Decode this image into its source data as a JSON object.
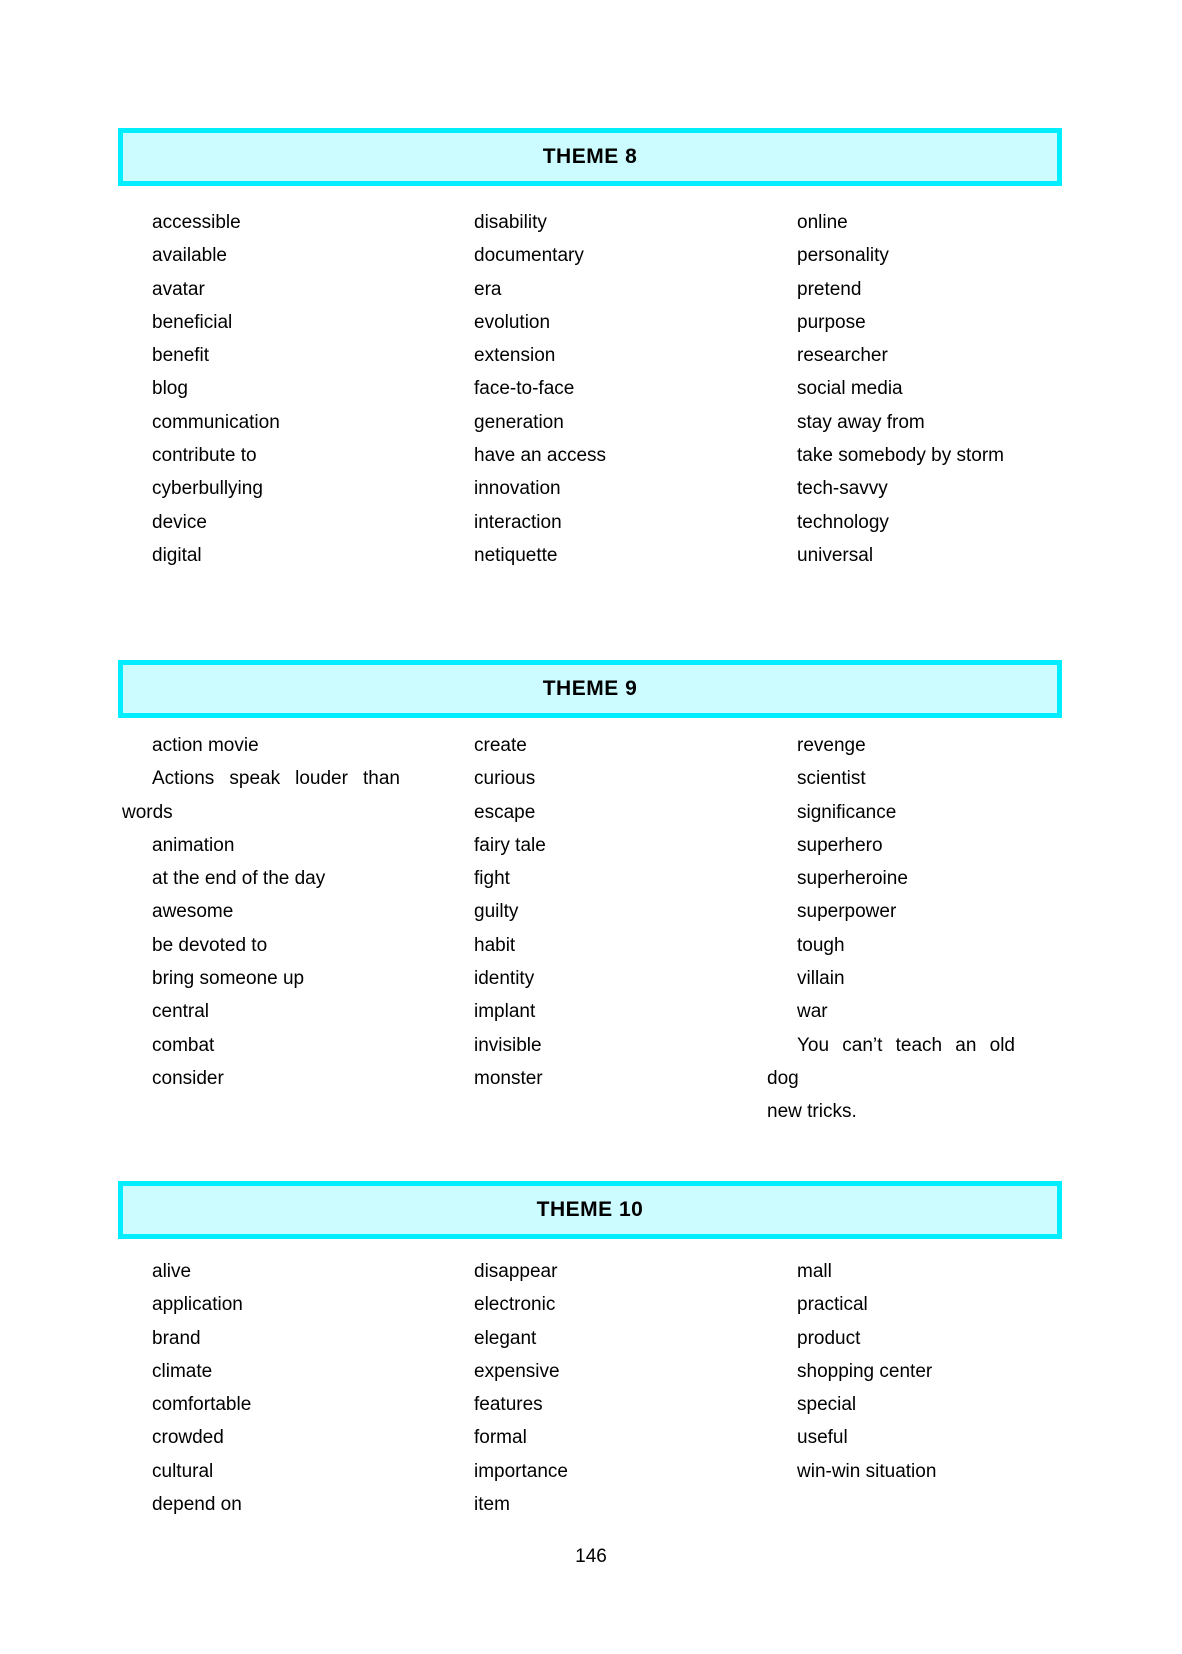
{
  "page": {
    "number": "146"
  },
  "colors": {
    "box_border": "#00eeff",
    "box_fill": "#ccfcff"
  },
  "themes": [
    {
      "title": "THEME 8",
      "columns": [
        [
          "accessible",
          "available",
          "avatar",
          "beneficial",
          "benefit",
          "blog",
          "communication",
          "contribute to",
          "cyberbullying",
          "device",
          "digital"
        ],
        [
          "disability",
          "documentary",
          "era",
          "evolution",
          "extension",
          "face-to-face",
          "generation",
          "have an access",
          "innovation",
          "interaction",
          "netiquette"
        ],
        [
          "online",
          "personality",
          "pretend",
          "purpose",
          "researcher",
          "social media",
          "stay away from",
          "take somebody by storm",
          "tech-savvy",
          "technology",
          "universal"
        ]
      ]
    },
    {
      "title": "THEME 9",
      "columns": [
        [
          "action movie",
          {
            "lines": [
              "Actions speak louder than",
              "words"
            ]
          },
          "animation",
          "at the end of the day",
          "awesome",
          "be devoted to",
          "bring someone up",
          "central",
          "combat",
          "consider"
        ],
        [
          "create",
          "curious",
          "escape",
          "fairy tale",
          "fight",
          "guilty",
          "habit",
          "identity",
          "implant",
          "invisible",
          "monster"
        ],
        [
          "revenge",
          "scientist",
          "significance",
          "superhero",
          "superheroine",
          "superpower",
          "tough",
          "villain",
          "war",
          {
            "lines": [
              "You can’t teach an old dog",
              "new tricks."
            ]
          }
        ]
      ]
    },
    {
      "title": "THEME 10",
      "columns": [
        [
          "alive",
          "application",
          "brand",
          "climate",
          "comfortable",
          "crowded",
          "cultural",
          "depend on"
        ],
        [
          "disappear",
          "electronic",
          "elegant",
          "expensive",
          "features",
          "formal",
          "importance",
          "item"
        ],
        [
          "mall",
          "practical",
          "product",
          "shopping center",
          "special",
          "useful",
          "win-win situation"
        ]
      ]
    }
  ]
}
